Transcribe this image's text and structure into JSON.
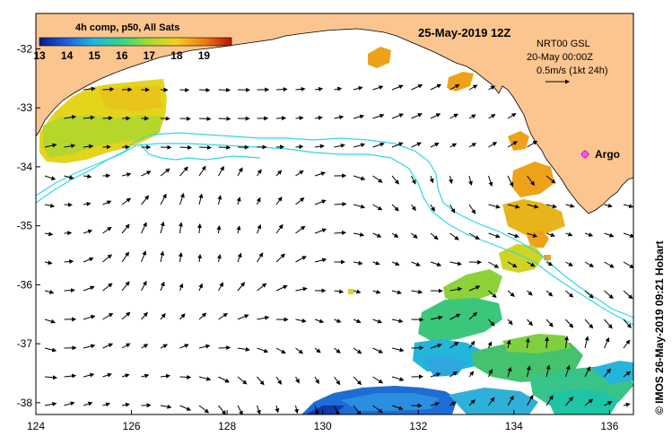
{
  "map": {
    "title": "25-May-2019 12Z",
    "legend": {
      "title": "4h comp, p50, All Sats",
      "ticks": [
        "13",
        "14",
        "15",
        "16",
        "17",
        "18",
        "19"
      ],
      "colors": [
        "#0a1a8c",
        "#1c5fe0",
        "#1fb6e6",
        "#36d48a",
        "#a6dc2e",
        "#f0d21e",
        "#f07a14",
        "#b4150e"
      ]
    },
    "info": {
      "line1": "NRT00 GSL",
      "line2": "20-May 00:00Z",
      "line3": "0.5m/s (1kt 24h)"
    },
    "argo_label": "Argo",
    "credit": "© IMOS 26-May-2019 09:21 Hobart",
    "x_axis": {
      "ticks": [
        "124",
        "126",
        "128",
        "130",
        "132",
        "134",
        "136"
      ],
      "values": [
        124,
        126,
        128,
        130,
        132,
        134,
        136
      ],
      "range": [
        124,
        136.5
      ]
    },
    "y_axis": {
      "ticks": [
        "-32",
        "-33",
        "-34",
        "-35",
        "-36",
        "-37",
        "-38"
      ],
      "values": [
        -32,
        -33,
        -34,
        -35,
        -36,
        -37,
        -38
      ],
      "range": [
        -38.2,
        -31.4
      ]
    },
    "colors": {
      "land": "#fbc590",
      "contour": "#2fd8e8",
      "arrow": "#000000",
      "argo_marker": "#e020e0"
    }
  }
}
